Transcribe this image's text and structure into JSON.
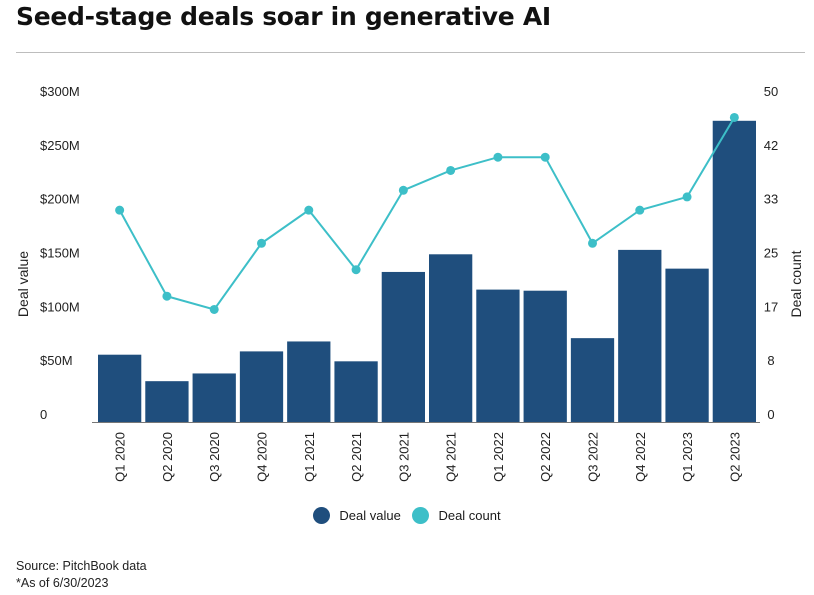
{
  "title": "Seed-stage deals soar in generative AI",
  "footer": {
    "source": "Source: PitchBook data",
    "note": "*As of 6/30/2023"
  },
  "colors": {
    "bar": "#1f4e7d",
    "line": "#3dbfc8"
  },
  "chart_data": {
    "type": "bar",
    "categories": [
      "Q1 2020",
      "Q2 2020",
      "Q3 2020",
      "Q4 2020",
      "Q1 2021",
      "Q2 2021",
      "Q3 2021",
      "Q4 2021",
      "Q1 2022",
      "Q2 2022",
      "Q3 2022",
      "Q4 2022",
      "Q1 2023",
      "Q2 2023"
    ],
    "series": [
      {
        "name": "Deal value",
        "type": "bar",
        "axis": "left",
        "values": [
          61,
          37,
          44,
          64,
          73,
          55,
          136,
          152,
          120,
          119,
          76,
          156,
          139,
          273
        ]
      },
      {
        "name": "Deal count",
        "type": "line",
        "axis": "right",
        "values": [
          32,
          19,
          17,
          27,
          32,
          23,
          35,
          38,
          40,
          40,
          27,
          32,
          34,
          46
        ]
      }
    ],
    "ylabel_left": "Deal value",
    "ylabel_right": "Deal count",
    "yticks_left": [
      "0",
      "$50M",
      "$100M",
      "$150M",
      "$200M",
      "$250M",
      "$300M"
    ],
    "yticks_right": [
      "0",
      "8",
      "17",
      "25",
      "33",
      "42",
      "50"
    ],
    "ylim_left": [
      0,
      300
    ],
    "ylim_right": [
      0,
      50
    ],
    "legend_position": "bottom",
    "grid": false
  }
}
